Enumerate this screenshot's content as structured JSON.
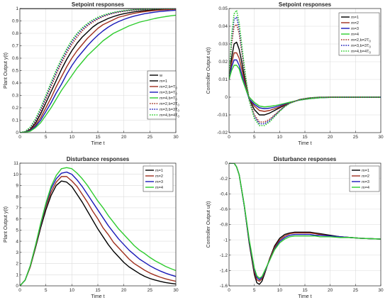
{
  "chart_data": [
    {
      "type": "line",
      "title": "Setpoint responses",
      "xlabel": "Time t",
      "ylabel": "Plant Output y(t)",
      "xlim": [
        0,
        30
      ],
      "ylim": [
        0,
        1
      ],
      "xticks": [
        "0",
        "5",
        "10",
        "15",
        "20",
        "25",
        "30"
      ],
      "yticks": [
        "0",
        "0.1",
        "0.2",
        "0.3",
        "0.4",
        "0.5",
        "0.6",
        "0.7",
        "0.8",
        "0.9",
        "1"
      ],
      "grid": true,
      "legend_position": "center-right",
      "x": [
        0,
        1,
        2,
        3,
        4,
        5,
        6,
        7,
        8,
        9,
        10,
        11,
        12,
        13,
        14,
        15,
        16,
        17,
        18,
        19,
        20,
        21,
        22,
        23,
        24,
        25,
        26,
        27,
        28,
        29,
        30
      ],
      "series": [
        {
          "name": "w",
          "color": "#000000",
          "style": "solid",
          "values": [
            1,
            1,
            1,
            1,
            1,
            1,
            1,
            1,
            1,
            1,
            1,
            1,
            1,
            1,
            1,
            1,
            1,
            1,
            1,
            1,
            1,
            1,
            1,
            1,
            1,
            1,
            1,
            1,
            1,
            1,
            1
          ]
        },
        {
          "name": "m=1",
          "color": "#000000",
          "style": "solid",
          "values": [
            0,
            0.005,
            0.026,
            0.076,
            0.15,
            0.24,
            0.33,
            0.42,
            0.51,
            0.59,
            0.66,
            0.72,
            0.77,
            0.81,
            0.85,
            0.88,
            0.9,
            0.92,
            0.935,
            0.948,
            0.958,
            0.966,
            0.973,
            0.978,
            0.983,
            0.986,
            0.989,
            0.991,
            0.993,
            0.995,
            0.996
          ]
        },
        {
          "name": "m=2,b=T",
          "sub": "0",
          "color": "#a0301e",
          "style": "solid",
          "values": [
            0,
            0.004,
            0.02,
            0.06,
            0.12,
            0.2,
            0.28,
            0.37,
            0.45,
            0.53,
            0.6,
            0.66,
            0.71,
            0.76,
            0.8,
            0.84,
            0.87,
            0.89,
            0.91,
            0.93,
            0.94,
            0.952,
            0.961,
            0.969,
            0.975,
            0.98,
            0.984,
            0.987,
            0.99,
            0.992,
            0.994
          ]
        },
        {
          "name": "m=3,b=T",
          "sub": "0",
          "color": "#1a1ab8",
          "style": "solid",
          "values": [
            0,
            0.003,
            0.016,
            0.05,
            0.1,
            0.17,
            0.24,
            0.32,
            0.39,
            0.47,
            0.54,
            0.6,
            0.65,
            0.7,
            0.745,
            0.785,
            0.82,
            0.85,
            0.875,
            0.895,
            0.912,
            0.927,
            0.939,
            0.949,
            0.958,
            0.965,
            0.971,
            0.976,
            0.98,
            0.983,
            0.986
          ]
        },
        {
          "name": "m=4,b=T",
          "sub": "0",
          "color": "#2ecc2e",
          "style": "solid",
          "values": [
            0,
            0.002,
            0.012,
            0.04,
            0.08,
            0.14,
            0.2,
            0.27,
            0.34,
            0.4,
            0.46,
            0.52,
            0.57,
            0.62,
            0.66,
            0.7,
            0.74,
            0.77,
            0.8,
            0.82,
            0.84,
            0.86,
            0.875,
            0.89,
            0.9,
            0.91,
            0.92,
            0.928,
            0.935,
            0.941,
            0.946
          ]
        },
        {
          "name": "m=2,b=2T",
          "sub": "0",
          "color": "#a0301e",
          "style": "dotted",
          "values": [
            0,
            0.007,
            0.035,
            0.09,
            0.17,
            0.27,
            0.37,
            0.47,
            0.56,
            0.64,
            0.71,
            0.77,
            0.82,
            0.86,
            0.89,
            0.915,
            0.935,
            0.95,
            0.962,
            0.971,
            0.978,
            0.983,
            0.987,
            0.99,
            0.993,
            0.995,
            0.996,
            0.997,
            0.998,
            0.998,
            0.999
          ]
        },
        {
          "name": "m=3,b=3T",
          "sub": "0",
          "color": "#1a1ab8",
          "style": "dotted",
          "values": [
            0,
            0.008,
            0.04,
            0.1,
            0.185,
            0.285,
            0.39,
            0.49,
            0.58,
            0.66,
            0.73,
            0.79,
            0.835,
            0.87,
            0.9,
            0.922,
            0.94,
            0.954,
            0.965,
            0.974,
            0.98,
            0.985,
            0.989,
            0.992,
            0.994,
            0.996,
            0.997,
            0.998,
            0.998,
            0.999,
            0.999
          ]
        },
        {
          "name": "m=4,b=4T",
          "sub": "0",
          "color": "#2ecc2e",
          "style": "dotted",
          "values": [
            0,
            0.009,
            0.045,
            0.11,
            0.2,
            0.3,
            0.405,
            0.505,
            0.595,
            0.675,
            0.745,
            0.8,
            0.845,
            0.88,
            0.908,
            0.93,
            0.946,
            0.959,
            0.969,
            0.977,
            0.983,
            0.987,
            0.99,
            0.993,
            0.995,
            0.996,
            0.997,
            0.998,
            0.999,
            0.999,
            0.999
          ]
        }
      ]
    },
    {
      "type": "line",
      "title": "Setpoint responses",
      "xlabel": "Time t",
      "ylabel": "Controller Output u(t)",
      "xlim": [
        0,
        30
      ],
      "ylim": [
        -0.02,
        0.05
      ],
      "xticks": [
        "0",
        "5",
        "10",
        "15",
        "20",
        "25",
        "30"
      ],
      "yticks": [
        "-0.02",
        "-0.01",
        "0",
        "0.01",
        "0.02",
        "0.03",
        "0.04",
        "0.05"
      ],
      "grid": true,
      "legend_position": "top-right",
      "x": [
        0,
        0.5,
        1,
        1.5,
        2,
        2.5,
        3,
        3.5,
        4,
        5,
        6,
        7,
        8,
        9,
        10,
        11,
        12,
        14,
        16,
        18,
        20,
        25,
        30
      ],
      "series": [
        {
          "name": "m=1",
          "color": "#000000",
          "style": "solid",
          "values": [
            0.01,
            0.022,
            0.03,
            0.031,
            0.027,
            0.02,
            0.012,
            0.005,
            -0.001,
            -0.007,
            -0.01,
            -0.01,
            -0.009,
            -0.0075,
            -0.006,
            -0.0045,
            -0.003,
            -0.0015,
            -0.0006,
            -0.0002,
            0,
            0,
            0
          ]
        },
        {
          "name": "m=2",
          "color": "#a0301e",
          "style": "solid",
          "values": [
            0.01,
            0.019,
            0.025,
            0.025,
            0.022,
            0.016,
            0.01,
            0.004,
            -0.001,
            -0.005,
            -0.0075,
            -0.008,
            -0.0075,
            -0.0065,
            -0.0055,
            -0.0042,
            -0.003,
            -0.0015,
            -0.0007,
            -0.0002,
            0,
            0,
            0
          ]
        },
        {
          "name": "m=3",
          "color": "#1a1ab8",
          "style": "solid",
          "values": [
            0.01,
            0.017,
            0.021,
            0.021,
            0.018,
            0.013,
            0.008,
            0.003,
            -0.001,
            -0.004,
            -0.006,
            -0.0065,
            -0.0062,
            -0.0056,
            -0.0048,
            -0.0038,
            -0.003,
            -0.0016,
            -0.0008,
            -0.0003,
            -0.0001,
            0,
            0
          ]
        },
        {
          "name": "m=4",
          "color": "#2ecc2e",
          "style": "solid",
          "values": [
            0.01,
            0.015,
            0.018,
            0.018,
            0.016,
            0.011,
            0.007,
            0.003,
            0,
            -0.003,
            -0.005,
            -0.0055,
            -0.0052,
            -0.0048,
            -0.0042,
            -0.0035,
            -0.0028,
            -0.0016,
            -0.0008,
            -0.0003,
            -0.0001,
            0,
            0
          ]
        },
        {
          "name": "m=2,b=2T",
          "sub": "0",
          "color": "#a0301e",
          "style": "dotted",
          "values": [
            0.01,
            0.03,
            0.04,
            0.041,
            0.036,
            0.026,
            0.016,
            0.007,
            -0.001,
            -0.01,
            -0.014,
            -0.014,
            -0.0125,
            -0.01,
            -0.0075,
            -0.005,
            -0.0033,
            -0.0013,
            -0.0004,
            0,
            0,
            0,
            0
          ]
        },
        {
          "name": "m=3,b=3T",
          "sub": "0",
          "color": "#1a1ab8",
          "style": "dotted",
          "values": [
            0.01,
            0.033,
            0.044,
            0.045,
            0.039,
            0.028,
            0.017,
            0.007,
            -0.002,
            -0.011,
            -0.015,
            -0.015,
            -0.0133,
            -0.0105,
            -0.0078,
            -0.0052,
            -0.0034,
            -0.0013,
            -0.0004,
            0,
            0,
            0,
            0
          ]
        },
        {
          "name": "m=4,b=4T",
          "sub": "0",
          "color": "#2ecc2e",
          "style": "dotted",
          "values": [
            0.01,
            0.035,
            0.047,
            0.049,
            0.042,
            0.03,
            0.018,
            0.007,
            -0.002,
            -0.012,
            -0.016,
            -0.016,
            -0.014,
            -0.011,
            -0.008,
            -0.0054,
            -0.0035,
            -0.0013,
            -0.0004,
            0,
            0,
            0,
            0
          ]
        }
      ]
    },
    {
      "type": "line",
      "title": "Disturbance responses",
      "xlabel": "Time t",
      "ylabel": "Plant Output y(t)",
      "xlim": [
        0,
        30
      ],
      "ylim": [
        0,
        11
      ],
      "xticks": [
        "0",
        "5",
        "10",
        "15",
        "20",
        "25",
        "30"
      ],
      "yticks": [
        "0",
        "1",
        "2",
        "3",
        "4",
        "5",
        "6",
        "7",
        "8",
        "9",
        "10",
        "11"
      ],
      "grid": true,
      "legend_position": "top-right",
      "x": [
        0,
        1,
        2,
        3,
        4,
        5,
        6,
        7,
        8,
        9,
        10,
        11,
        12,
        13,
        14,
        15,
        16,
        17,
        18,
        19,
        20,
        21,
        22,
        23,
        24,
        25,
        26,
        27,
        28,
        29,
        30
      ],
      "series": [
        {
          "name": "m=1",
          "color": "#000000",
          "style": "solid",
          "values": [
            0,
            0.5,
            1.7,
            3.4,
            5.2,
            6.8,
            8.1,
            9.0,
            9.4,
            9.3,
            8.9,
            8.2,
            7.5,
            6.7,
            5.9,
            5.1,
            4.4,
            3.7,
            3.1,
            2.6,
            2.1,
            1.7,
            1.4,
            1.1,
            0.85,
            0.66,
            0.52,
            0.4,
            0.3,
            0.23,
            0.17
          ]
        },
        {
          "name": "m=2",
          "color": "#a0301e",
          "style": "solid",
          "values": [
            0,
            0.5,
            1.7,
            3.5,
            5.4,
            7.1,
            8.4,
            9.3,
            9.8,
            9.8,
            9.4,
            8.9,
            8.2,
            7.5,
            6.7,
            6.0,
            5.2,
            4.6,
            3.9,
            3.4,
            2.9,
            2.4,
            2.0,
            1.7,
            1.4,
            1.15,
            0.95,
            0.78,
            0.63,
            0.51,
            0.41
          ]
        },
        {
          "name": "m=3",
          "color": "#1a1ab8",
          "style": "solid",
          "values": [
            0,
            0.5,
            1.8,
            3.6,
            5.5,
            7.3,
            8.7,
            9.6,
            10.1,
            10.2,
            10.0,
            9.5,
            8.9,
            8.2,
            7.5,
            6.8,
            6.1,
            5.4,
            4.8,
            4.2,
            3.7,
            3.2,
            2.8,
            2.4,
            2.1,
            1.8,
            1.55,
            1.33,
            1.14,
            0.98,
            0.84
          ]
        },
        {
          "name": "m=4",
          "color": "#2ecc2e",
          "style": "solid",
          "values": [
            0,
            0.5,
            1.8,
            3.6,
            5.6,
            7.4,
            8.9,
            9.9,
            10.5,
            10.6,
            10.5,
            10.1,
            9.6,
            9.0,
            8.3,
            7.6,
            7.0,
            6.3,
            5.7,
            5.1,
            4.6,
            4.1,
            3.6,
            3.2,
            2.9,
            2.55,
            2.25,
            2.0,
            1.75,
            1.55,
            1.37
          ]
        }
      ]
    },
    {
      "type": "line",
      "title": "Disturbance responses",
      "xlabel": "Time t",
      "ylabel": "Controller Output u(t)",
      "xlim": [
        0,
        30
      ],
      "ylim": [
        -1.6,
        0
      ],
      "xticks": [
        "0",
        "5",
        "10",
        "15",
        "20",
        "25",
        "30"
      ],
      "yticks": [
        "-1.6",
        "-1.4",
        "-1.2",
        "-1",
        "-0.8",
        "-0.6",
        "-0.4",
        "-0.2",
        "0"
      ],
      "grid": true,
      "legend_position": "top-right",
      "x": [
        0,
        0.5,
        1,
        1.5,
        2,
        3,
        4,
        5,
        5.5,
        6,
        6.5,
        7,
        8,
        9,
        10,
        11,
        12,
        13,
        14,
        15,
        16,
        17,
        18,
        20,
        22,
        24,
        26,
        28,
        30
      ],
      "series": [
        {
          "name": "m=1",
          "color": "#000000",
          "style": "solid",
          "values": [
            0,
            0,
            0,
            -0.05,
            -0.15,
            -0.55,
            -1.05,
            -1.45,
            -1.56,
            -1.58,
            -1.54,
            -1.45,
            -1.25,
            -1.08,
            -0.98,
            -0.93,
            -0.91,
            -0.9,
            -0.9,
            -0.9,
            -0.9,
            -0.91,
            -0.92,
            -0.94,
            -0.96,
            -0.97,
            -0.98,
            -0.985,
            -0.99
          ]
        },
        {
          "name": "m=2",
          "color": "#a0301e",
          "style": "solid",
          "values": [
            0,
            0,
            0,
            -0.05,
            -0.15,
            -0.55,
            -1.03,
            -1.42,
            -1.52,
            -1.54,
            -1.51,
            -1.43,
            -1.26,
            -1.1,
            -1.0,
            -0.95,
            -0.92,
            -0.91,
            -0.91,
            -0.91,
            -0.91,
            -0.92,
            -0.93,
            -0.95,
            -0.96,
            -0.97,
            -0.98,
            -0.985,
            -0.99
          ]
        },
        {
          "name": "m=3",
          "color": "#1a1ab8",
          "style": "solid",
          "values": [
            0,
            0,
            0,
            -0.05,
            -0.15,
            -0.55,
            -1.02,
            -1.39,
            -1.49,
            -1.52,
            -1.49,
            -1.42,
            -1.27,
            -1.12,
            -1.02,
            -0.97,
            -0.94,
            -0.93,
            -0.93,
            -0.93,
            -0.93,
            -0.94,
            -0.94,
            -0.95,
            -0.96,
            -0.97,
            -0.98,
            -0.985,
            -0.99
          ]
        },
        {
          "name": "m=4",
          "color": "#2ecc2e",
          "style": "solid",
          "values": [
            0,
            0,
            0,
            -0.05,
            -0.15,
            -0.54,
            -1.0,
            -1.37,
            -1.47,
            -1.5,
            -1.48,
            -1.41,
            -1.27,
            -1.13,
            -1.04,
            -0.99,
            -0.96,
            -0.95,
            -0.95,
            -0.95,
            -0.95,
            -0.95,
            -0.96,
            -0.96,
            -0.97,
            -0.97,
            -0.98,
            -0.985,
            -0.99
          ]
        }
      ]
    }
  ]
}
